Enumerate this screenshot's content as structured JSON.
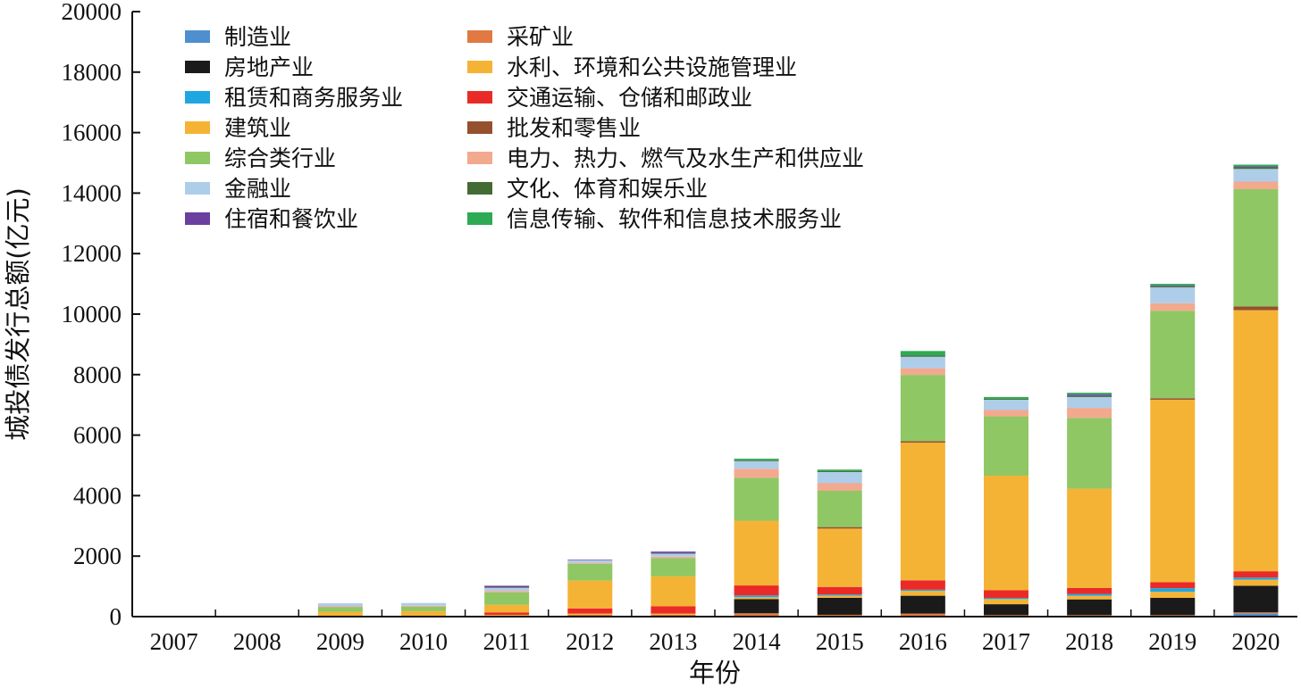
{
  "chart_data": {
    "type": "bar",
    "stacked": true,
    "title": "",
    "xlabel": "年份",
    "ylabel": "城投债发行总额(亿元)",
    "ylim": [
      0,
      20000
    ],
    "yticks": [
      "0",
      "2000",
      "4000",
      "6000",
      "8000",
      "10000",
      "12000",
      "14000",
      "16000",
      "18000",
      "20000"
    ],
    "categories": [
      "2007",
      "2008",
      "2009",
      "2010",
      "2011",
      "2012",
      "2013",
      "2014",
      "2015",
      "2016",
      "2017",
      "2018",
      "2019",
      "2020"
    ],
    "legend_position": "top-left",
    "grid": false,
    "series": [
      {
        "name": "制造业",
        "color": "#4f8fd0",
        "values": [
          0,
          0,
          0,
          0,
          0,
          0,
          0,
          30,
          30,
          30,
          20,
          20,
          20,
          100
        ]
      },
      {
        "name": "采矿业",
        "color": "#e07a42",
        "values": [
          5,
          0,
          0,
          0,
          30,
          60,
          60,
          80,
          30,
          70,
          30,
          30,
          30,
          40
        ]
      },
      {
        "name": "房地产业",
        "color": "#1a1a1a",
        "values": [
          0,
          0,
          0,
          0,
          0,
          0,
          0,
          470,
          560,
          590,
          360,
          520,
          570,
          880
        ]
      },
      {
        "name": "水利、环境和公共设施管理业",
        "color": "#f5b335",
        "values": [
          0,
          0,
          0,
          0,
          30,
          40,
          40,
          60,
          70,
          160,
          170,
          120,
          200,
          200
        ]
      },
      {
        "name": "租赁和商务服务业",
        "color": "#1ea6e0",
        "values": [
          0,
          0,
          0,
          0,
          0,
          0,
          0,
          60,
          40,
          40,
          40,
          60,
          120,
          70
        ]
      },
      {
        "name": "交通运输、仓储和邮政业",
        "color": "#ea2a26",
        "values": [
          0,
          0,
          0,
          0,
          80,
          170,
          240,
          330,
          250,
          310,
          250,
          200,
          200,
          210
        ]
      },
      {
        "name": "建筑业",
        "color": "#f5b335",
        "values": [
          15,
          20,
          160,
          180,
          250,
          920,
          990,
          2140,
          1930,
          4550,
          3790,
          3280,
          6030,
          8630
        ]
      },
      {
        "name": "批发和零售业",
        "color": "#95502e",
        "values": [
          0,
          0,
          0,
          0,
          0,
          0,
          0,
          0,
          50,
          50,
          0,
          0,
          50,
          120
        ]
      },
      {
        "name": "综合类行业",
        "color": "#8fc764",
        "values": [
          0,
          0,
          150,
          150,
          410,
          560,
          600,
          1420,
          1200,
          2190,
          1960,
          2340,
          2890,
          3880
        ]
      },
      {
        "name": "电力、热力、燃气及水生产和供应业",
        "color": "#f2a98e",
        "values": [
          0,
          0,
          30,
          30,
          50,
          30,
          50,
          300,
          250,
          220,
          210,
          330,
          250,
          250
        ]
      },
      {
        "name": "金融业",
        "color": "#aecde9",
        "values": [
          0,
          0,
          100,
          90,
          100,
          80,
          100,
          250,
          370,
          380,
          340,
          360,
          520,
          420
        ]
      },
      {
        "name": "文化、体育和娱乐业",
        "color": "#456b34",
        "values": [
          0,
          0,
          0,
          0,
          20,
          0,
          20,
          30,
          30,
          40,
          30,
          30,
          30,
          50
        ]
      },
      {
        "name": "住宿和餐饮业",
        "color": "#6a3fa0",
        "values": [
          0,
          0,
          0,
          0,
          50,
          20,
          50,
          0,
          0,
          0,
          0,
          50,
          30,
          30
        ]
      },
      {
        "name": "信息传输、软件和信息技术服务业",
        "color": "#2eaa55",
        "values": [
          0,
          0,
          0,
          0,
          0,
          0,
          0,
          50,
          50,
          150,
          60,
          60,
          60,
          60
        ]
      }
    ]
  }
}
